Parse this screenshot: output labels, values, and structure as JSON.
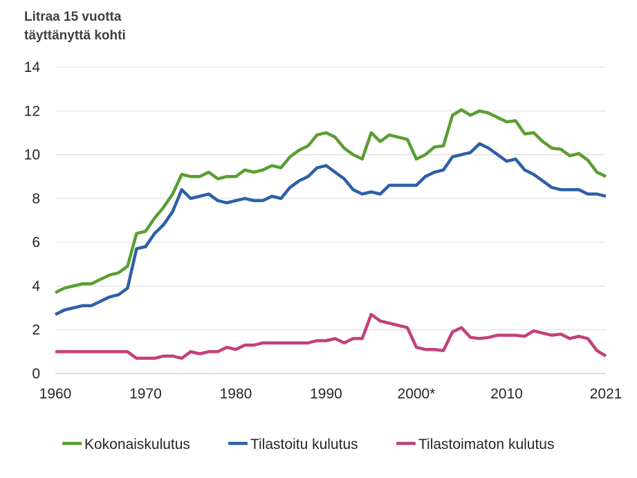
{
  "chart_data": {
    "type": "line",
    "ylabel_line1": "Litraa 15 vuotta",
    "ylabel_line2": "täyttänyttä kohti",
    "ylim": [
      0,
      14
    ],
    "yticks": [
      0,
      2,
      4,
      6,
      8,
      10,
      12,
      14
    ],
    "xlim": [
      1960,
      2021
    ],
    "xticks": [
      {
        "value": 1960,
        "label": "1960"
      },
      {
        "value": 1970,
        "label": "1970"
      },
      {
        "value": 1980,
        "label": "1980"
      },
      {
        "value": 1990,
        "label": "1990"
      },
      {
        "value": 2000,
        "label": "2000*"
      },
      {
        "value": 2010,
        "label": "2010"
      },
      {
        "value": 2021,
        "label": "2021"
      }
    ],
    "grid": "horizontal",
    "legend": "bottom",
    "x": [
      1960,
      1961,
      1962,
      1963,
      1964,
      1965,
      1966,
      1967,
      1968,
      1969,
      1970,
      1971,
      1972,
      1973,
      1974,
      1975,
      1976,
      1977,
      1978,
      1979,
      1980,
      1981,
      1982,
      1983,
      1984,
      1985,
      1986,
      1987,
      1988,
      1989,
      1990,
      1991,
      1992,
      1993,
      1994,
      1995,
      1996,
      1997,
      1998,
      1999,
      2000,
      2001,
      2002,
      2003,
      2004,
      2005,
      2006,
      2007,
      2008,
      2009,
      2010,
      2011,
      2012,
      2013,
      2014,
      2015,
      2016,
      2017,
      2018,
      2019,
      2020,
      2021
    ],
    "series": [
      {
        "name": "Kokonaiskulutus",
        "color": "#5a9e32",
        "values": [
          3.7,
          3.9,
          4.0,
          4.1,
          4.1,
          4.3,
          4.5,
          4.6,
          4.9,
          6.4,
          6.5,
          7.1,
          7.6,
          8.2,
          9.1,
          9.0,
          9.0,
          9.2,
          8.9,
          9.0,
          9.0,
          9.3,
          9.2,
          9.3,
          9.5,
          9.4,
          9.9,
          10.2,
          10.4,
          10.9,
          11.0,
          10.8,
          10.3,
          10.0,
          9.8,
          11.0,
          10.6,
          10.9,
          10.8,
          10.7,
          9.8,
          10.0,
          10.35,
          10.4,
          11.8,
          12.05,
          11.8,
          12.0,
          11.9,
          11.7,
          11.5,
          11.55,
          10.95,
          11.0,
          10.6,
          10.3,
          10.25,
          9.95,
          10.05,
          9.75,
          9.2,
          9.0
        ]
      },
      {
        "name": "Tilastoitu kulutus",
        "color": "#2e5fa8",
        "values": [
          2.7,
          2.9,
          3.0,
          3.1,
          3.1,
          3.3,
          3.5,
          3.6,
          3.9,
          5.7,
          5.8,
          6.4,
          6.8,
          7.4,
          8.4,
          8.0,
          8.1,
          8.2,
          7.9,
          7.8,
          7.9,
          8.0,
          7.9,
          7.9,
          8.1,
          8.0,
          8.5,
          8.8,
          9.0,
          9.4,
          9.5,
          9.2,
          8.9,
          8.4,
          8.2,
          8.3,
          8.2,
          8.6,
          8.6,
          8.6,
          8.6,
          9.0,
          9.2,
          9.3,
          9.9,
          10.0,
          10.1,
          10.5,
          10.3,
          10.0,
          9.7,
          9.8,
          9.3,
          9.1,
          8.8,
          8.5,
          8.4,
          8.4,
          8.4,
          8.2,
          8.2,
          8.1
        ]
      },
      {
        "name": "Tilastoimaton kulutus",
        "color": "#c2407a",
        "values": [
          1.0,
          1.0,
          1.0,
          1.0,
          1.0,
          1.0,
          1.0,
          1.0,
          1.0,
          0.7,
          0.7,
          0.7,
          0.8,
          0.8,
          0.7,
          1.0,
          0.9,
          1.0,
          1.0,
          1.2,
          1.1,
          1.3,
          1.3,
          1.4,
          1.4,
          1.4,
          1.4,
          1.4,
          1.4,
          1.5,
          1.5,
          1.6,
          1.4,
          1.6,
          1.6,
          2.7,
          2.4,
          2.3,
          2.2,
          2.1,
          1.2,
          1.1,
          1.1,
          1.05,
          1.9,
          2.1,
          1.65,
          1.6,
          1.65,
          1.75,
          1.75,
          1.75,
          1.7,
          1.95,
          1.85,
          1.75,
          1.8,
          1.6,
          1.7,
          1.6,
          1.05,
          0.8
        ]
      }
    ]
  }
}
